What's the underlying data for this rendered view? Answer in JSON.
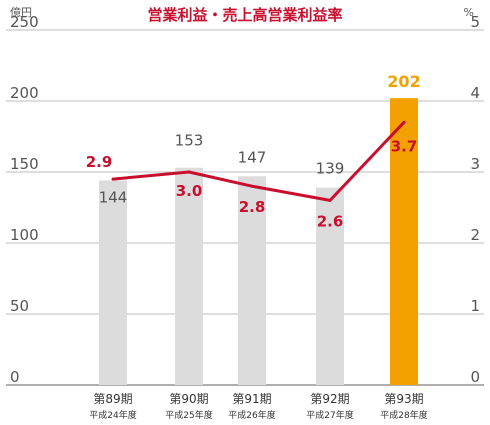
{
  "chart_data": {
    "type": "bar",
    "title": "営業利益・売上高営業利益率",
    "left_unit": "億円",
    "right_unit": "%",
    "categories": [
      "第89期",
      "第90期",
      "第91期",
      "第92期",
      "第93期"
    ],
    "category_sublabels": [
      "平成24年度",
      "平成25年度",
      "平成26年度",
      "平成27年度",
      "平成28年度"
    ],
    "series": [
      {
        "type": "bar",
        "axis": "left",
        "values": [
          144,
          153,
          147,
          139,
          202
        ],
        "data_labels": [
          "144",
          "153",
          "147",
          "139",
          "202"
        ]
      },
      {
        "type": "line",
        "axis": "right",
        "values": [
          2.9,
          3.0,
          2.8,
          2.6,
          3.7
        ],
        "data_labels": [
          "2.9",
          "3.0",
          "2.8",
          "2.6",
          "3.7"
        ]
      }
    ],
    "ylim_left": [
      0,
      250
    ],
    "yticks_left": [
      "0",
      "50",
      "100",
      "150",
      "200",
      "250"
    ],
    "ylim_right": [
      0,
      5
    ],
    "yticks_right": [
      "0",
      "1",
      "2",
      "3",
      "4",
      "5"
    ],
    "grid": true,
    "colors": {
      "bar": "#dcdcdc",
      "bar_highlight": "#f2a100",
      "line": "#c8102e",
      "title": "#c8102e"
    },
    "highlight_index": 4
  }
}
